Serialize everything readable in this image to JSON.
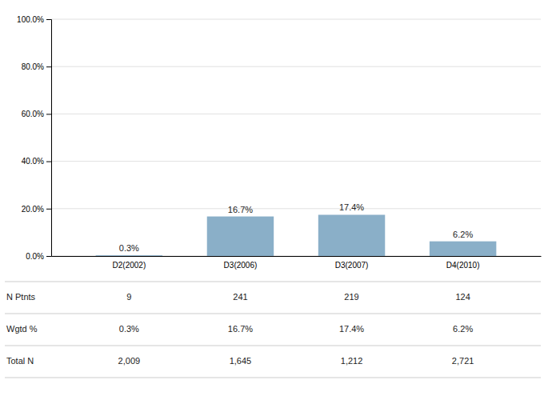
{
  "chart_data": {
    "type": "bar",
    "categories": [
      "D2(2002)",
      "D3(2006)",
      "D3(2007)",
      "D4(2010)"
    ],
    "values": [
      0.3,
      16.7,
      17.4,
      6.2
    ],
    "value_labels": [
      "0.3%",
      "16.7%",
      "17.4%",
      "6.2%"
    ],
    "data_labels": true,
    "color": "#8aafc8",
    "ylim": [
      0,
      100
    ],
    "yticks": [
      {
        "value": 0,
        "label": "0.0%"
      },
      {
        "value": 20,
        "label": "20.0%"
      },
      {
        "value": 40,
        "label": "40.0%"
      },
      {
        "value": 60,
        "label": "60.0%"
      },
      {
        "value": 80,
        "label": "80.0%"
      },
      {
        "value": 100,
        "label": "100.0%"
      }
    ],
    "grid": true,
    "table": {
      "row_labels": [
        "N Ptnts",
        "Wgtd %",
        "Total N"
      ],
      "rows": [
        [
          "9",
          "241",
          "219",
          "124"
        ],
        [
          "0.3%",
          "16.7%",
          "17.4%",
          "6.2%"
        ],
        [
          "2,009",
          "1,645",
          "1,212",
          "2,721"
        ]
      ]
    }
  }
}
